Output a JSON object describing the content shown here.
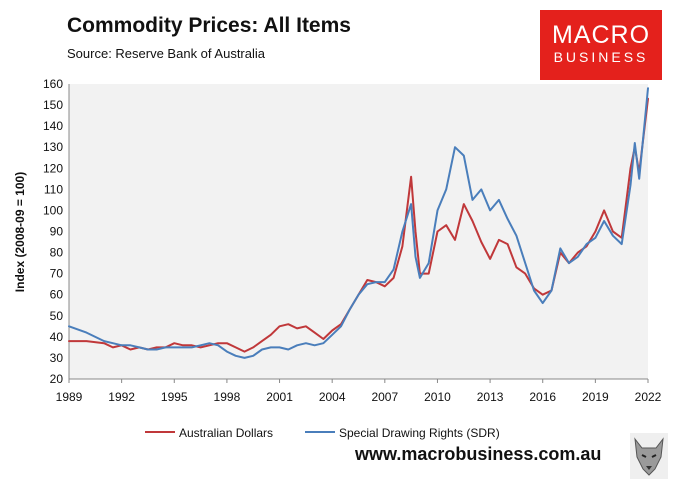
{
  "header": {
    "title": "Commodity Prices: All Items",
    "subtitle": "Source: Reserve Bank of Australia",
    "logo_line1": "MACRO",
    "logo_line2": "BUSINESS"
  },
  "footer": {
    "url": "www.macrobusiness.com.au"
  },
  "colors": {
    "aud": "#c0383a",
    "sdr": "#4a7ebb",
    "plot_bg": "#f2f2f2",
    "brand": "#e4211c"
  },
  "chart_data": {
    "type": "line",
    "title": "Commodity Prices: All Items",
    "ylabel": "Index (2008-09 = 100)",
    "xlabel": "",
    "xlim": [
      1989,
      2022
    ],
    "ylim": [
      20,
      160
    ],
    "yticks": [
      20,
      30,
      40,
      50,
      60,
      70,
      80,
      90,
      100,
      110,
      120,
      130,
      140,
      150,
      160
    ],
    "xticks": [
      1989,
      1992,
      1995,
      1998,
      2001,
      2004,
      2007,
      2010,
      2013,
      2016,
      2019,
      2022
    ],
    "grid": false,
    "legend_position": "bottom",
    "series": [
      {
        "name": "Australian Dollars",
        "x": [
          1989,
          1990,
          1991,
          1991.5,
          1992,
          1992.5,
          1993,
          1993.5,
          1994,
          1994.5,
          1995,
          1995.5,
          1996,
          1996.5,
          1997,
          1997.5,
          1998,
          1998.5,
          1999,
          1999.5,
          2000,
          2000.5,
          2001,
          2001.5,
          2002,
          2002.5,
          2003,
          2003.5,
          2004,
          2004.5,
          2005,
          2005.5,
          2006,
          2006.5,
          2007,
          2007.5,
          2008,
          2008.5,
          2008.75,
          2009,
          2009.5,
          2010,
          2010.5,
          2011,
          2011.5,
          2012,
          2012.5,
          2013,
          2013.5,
          2014,
          2014.5,
          2015,
          2015.5,
          2016,
          2016.5,
          2017,
          2017.5,
          2018,
          2018.5,
          2019,
          2019.5,
          2020,
          2020.5,
          2021,
          2021.25,
          2021.5,
          2022
        ],
        "values": [
          38,
          38,
          37,
          35,
          36,
          34,
          35,
          34,
          35,
          35,
          37,
          36,
          36,
          35,
          36,
          37,
          37,
          35,
          33,
          35,
          38,
          41,
          45,
          46,
          44,
          45,
          42,
          39,
          43,
          46,
          53,
          60,
          67,
          66,
          64,
          68,
          83,
          116,
          90,
          70,
          70,
          90,
          93,
          86,
          103,
          95,
          85,
          77,
          86,
          84,
          73,
          70,
          63,
          60,
          62,
          80,
          75,
          80,
          83,
          90,
          100,
          90,
          87,
          120,
          130,
          118,
          153
        ]
      },
      {
        "name": "Special Drawing Rights (SDR)",
        "x": [
          1989,
          1990,
          1991,
          1991.5,
          1992,
          1992.5,
          1993,
          1993.5,
          1994,
          1994.5,
          1995,
          1995.5,
          1996,
          1996.5,
          1997,
          1997.5,
          1998,
          1998.5,
          1999,
          1999.5,
          2000,
          2000.5,
          2001,
          2001.5,
          2002,
          2002.5,
          2003,
          2003.5,
          2004,
          2004.5,
          2005,
          2005.5,
          2006,
          2006.5,
          2007,
          2007.5,
          2008,
          2008.5,
          2008.75,
          2009,
          2009.5,
          2010,
          2010.5,
          2011,
          2011.5,
          2012,
          2012.5,
          2013,
          2013.5,
          2014,
          2014.5,
          2015,
          2015.5,
          2016,
          2016.5,
          2017,
          2017.5,
          2018,
          2018.5,
          2019,
          2019.5,
          2020,
          2020.5,
          2021,
          2021.25,
          2021.5,
          2022
        ],
        "values": [
          45,
          42,
          38,
          37,
          36,
          36,
          35,
          34,
          34,
          35,
          35,
          35,
          35,
          36,
          37,
          36,
          33,
          31,
          30,
          31,
          34,
          35,
          35,
          34,
          36,
          37,
          36,
          37,
          41,
          45,
          53,
          60,
          65,
          66,
          66,
          72,
          90,
          103,
          78,
          68,
          75,
          100,
          110,
          130,
          126,
          105,
          110,
          100,
          105,
          96,
          88,
          75,
          62,
          56,
          62,
          82,
          75,
          78,
          84,
          87,
          95,
          88,
          84,
          112,
          132,
          115,
          158
        ]
      }
    ]
  }
}
